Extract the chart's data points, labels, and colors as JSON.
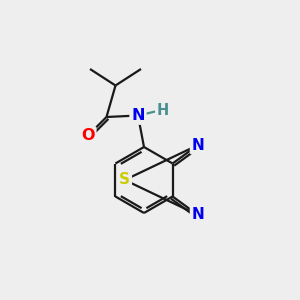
{
  "background_color": "#eeeeee",
  "bond_color": "#1a1a1a",
  "atom_colors": {
    "O": "#ff0000",
    "N": "#0000ee",
    "S": "#cccc00",
    "H": "#4a9090",
    "C": "#1a1a1a"
  },
  "figsize": [
    3.0,
    3.0
  ],
  "dpi": 100
}
